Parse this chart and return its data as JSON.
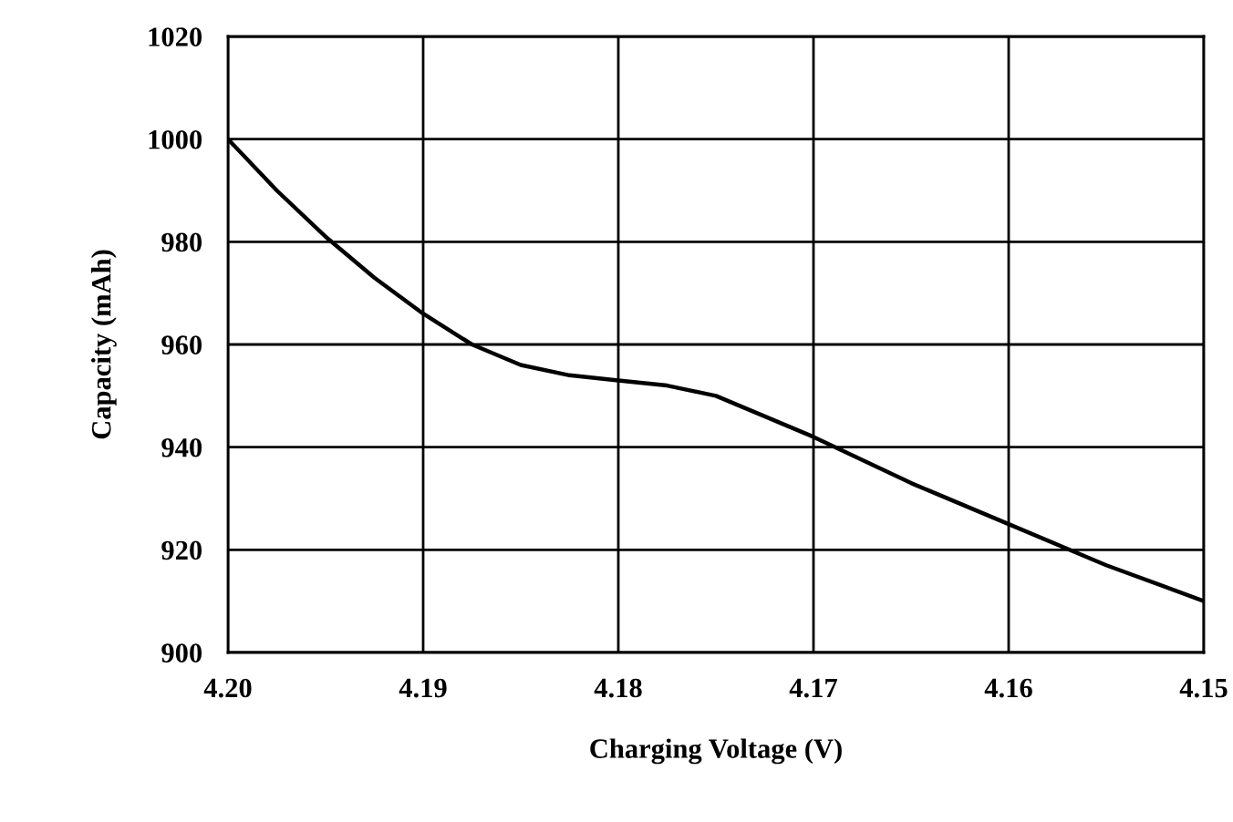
{
  "chart_data": {
    "type": "line",
    "xlabel": "Charging Voltage (V)",
    "ylabel": "Capacity (mAh)",
    "x": [
      4.2,
      4.1975,
      4.195,
      4.1925,
      4.19,
      4.1875,
      4.185,
      4.1825,
      4.18,
      4.1775,
      4.175,
      4.1725,
      4.17,
      4.165,
      4.16,
      4.155,
      4.15
    ],
    "series": [
      {
        "color": "#000000",
        "values": [
          1000,
          990,
          981,
          973,
          966,
          960,
          956,
          954,
          953,
          952,
          950,
          946,
          942,
          933,
          925,
          917,
          910
        ]
      }
    ],
    "xlim": [
      4.2,
      4.15
    ],
    "xticks": [
      {
        "value": 4.2,
        "label": "4.20"
      },
      {
        "value": 4.19,
        "label": "4.19"
      },
      {
        "value": 4.18,
        "label": "4.18"
      },
      {
        "value": 4.17,
        "label": "4.17"
      },
      {
        "value": 4.16,
        "label": "4.16"
      },
      {
        "value": 4.15,
        "label": "4.15"
      }
    ],
    "ylim": [
      900,
      1020
    ],
    "yticks": [
      900,
      920,
      940,
      960,
      980,
      1000,
      1020
    ],
    "grid": true,
    "marker": "none",
    "line_style": "solid"
  }
}
